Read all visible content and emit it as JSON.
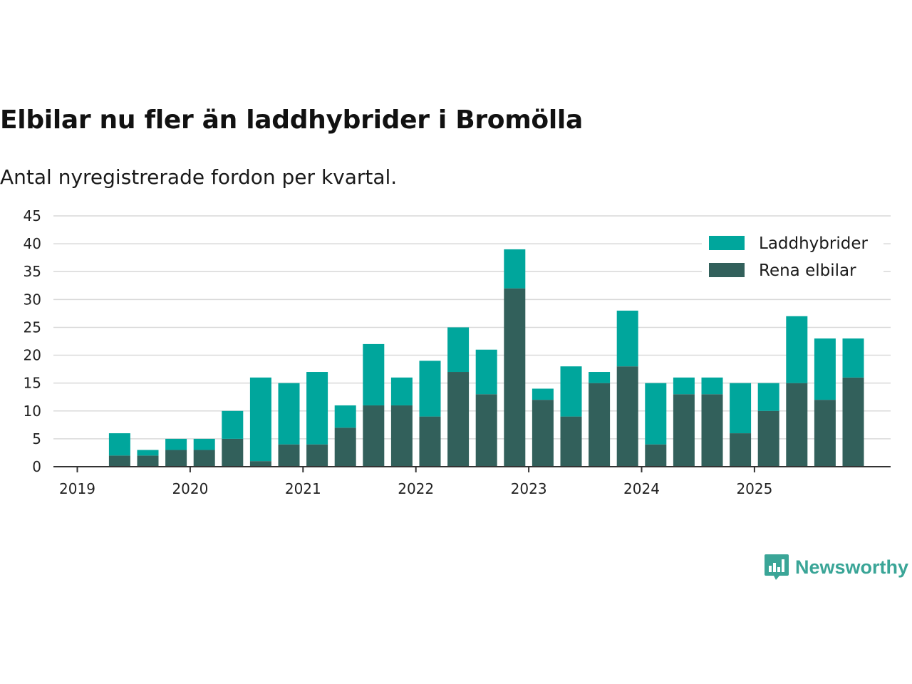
{
  "title": "Elbilar nu fler än laddhybrider i Bromölla",
  "subtitle": "Antal nyregistrerade fordon per kvartal.",
  "brand": "Newsworthy",
  "colors": {
    "laddhybrider": "#00a69c",
    "rena": "#32605b",
    "grid": "#d9d9d9",
    "axis": "#333333"
  },
  "chart_data": {
    "type": "bar",
    "stacked": true,
    "title": "Elbilar nu fler än laddhybrider i Bromölla",
    "subtitle": "Antal nyregistrerade fordon per kvartal.",
    "xlabel": "",
    "ylabel": "",
    "ylim": [
      0,
      45
    ],
    "yticks": [
      0,
      5,
      10,
      15,
      20,
      25,
      30,
      35,
      40,
      45
    ],
    "x_year_labels": [
      "2019",
      "2020",
      "2021",
      "2022",
      "2023",
      "2024",
      "2025"
    ],
    "categories": [
      "2019 Q1",
      "2019 Q2",
      "2019 Q3",
      "2019 Q4",
      "2020 Q1",
      "2020 Q2",
      "2020 Q3",
      "2020 Q4",
      "2021 Q1",
      "2021 Q2",
      "2021 Q3",
      "2021 Q4",
      "2022 Q1",
      "2022 Q2",
      "2022 Q3",
      "2022 Q4",
      "2023 Q1",
      "2023 Q2",
      "2023 Q3",
      "2023 Q4",
      "2024 Q1",
      "2024 Q2",
      "2024 Q3",
      "2024 Q4",
      "2025 Q1",
      "2025 Q2",
      "2025 Q3",
      "2025 Q4"
    ],
    "legend_position": "top-right",
    "series": [
      {
        "name": "Rena elbilar",
        "values": [
          0,
          2,
          2,
          3,
          3,
          5,
          1,
          4,
          4,
          7,
          11,
          11,
          9,
          17,
          13,
          32,
          12,
          9,
          15,
          18,
          4,
          13,
          13,
          6,
          10,
          15,
          12,
          16
        ]
      },
      {
        "name": "Laddhybrider",
        "values": [
          0,
          4,
          1,
          2,
          2,
          5,
          15,
          11,
          13,
          4,
          11,
          5,
          10,
          8,
          8,
          7,
          2,
          9,
          2,
          10,
          11,
          3,
          3,
          9,
          5,
          12,
          11,
          7
        ]
      }
    ],
    "legend": [
      "Laddhybrider",
      "Rena elbilar"
    ]
  }
}
